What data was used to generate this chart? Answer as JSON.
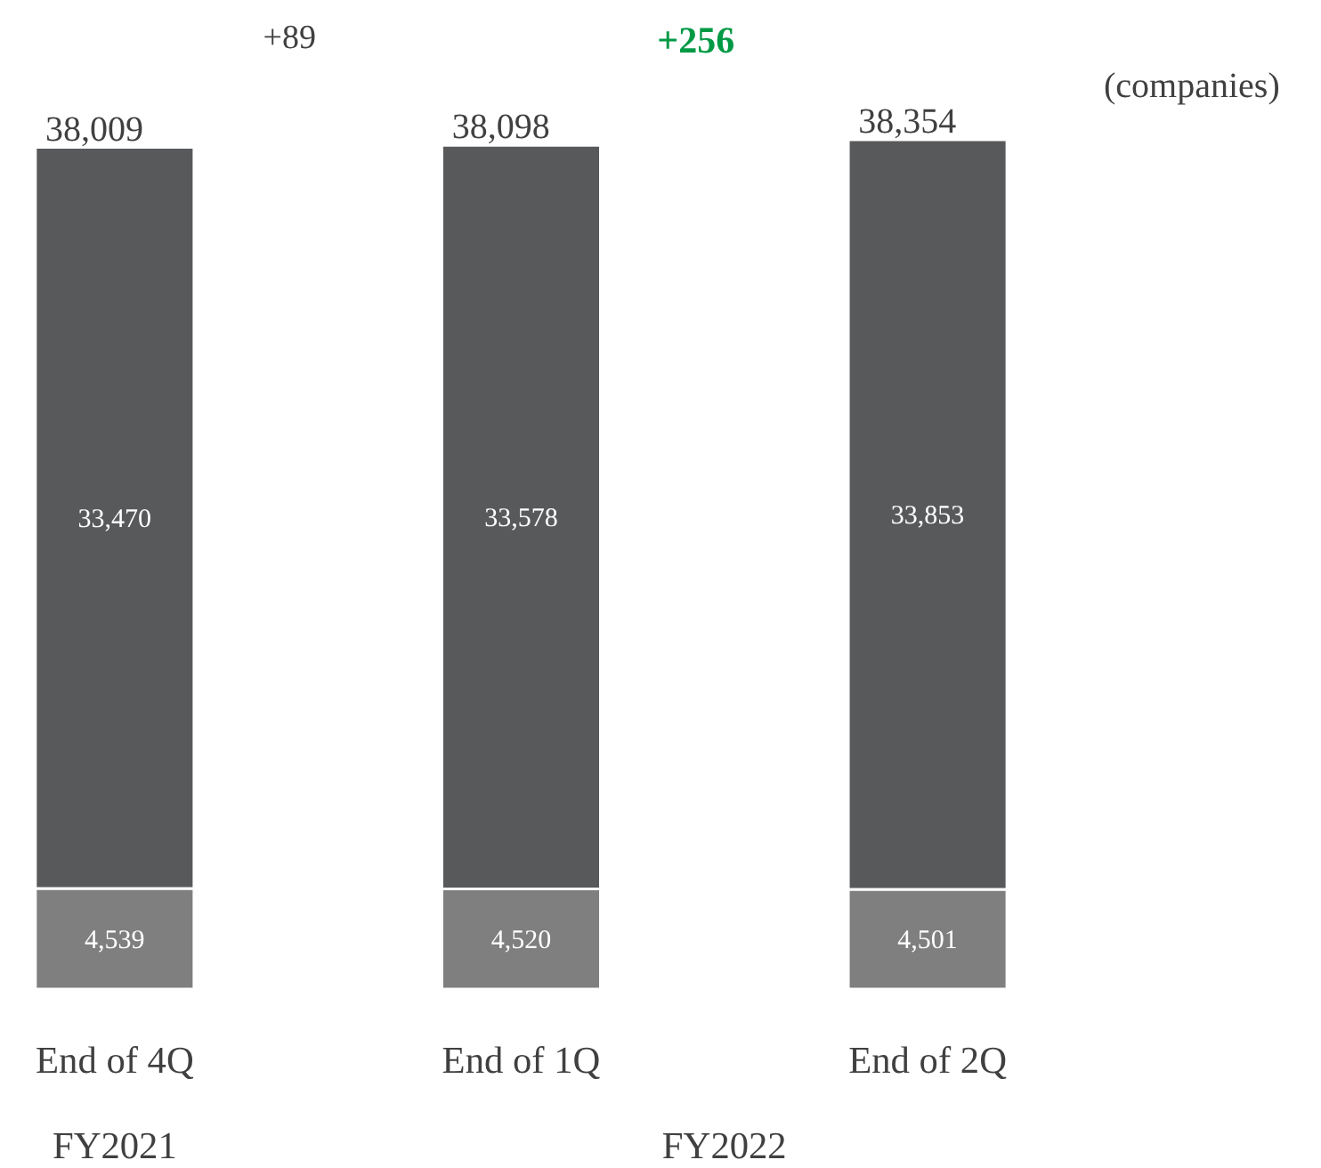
{
  "chart_data": {
    "type": "bar",
    "stacked": true,
    "grid": false,
    "categories": [
      "End of 4Q",
      "End of 1Q",
      "End of 2Q"
    ],
    "series": [
      {
        "color": "#7f7f7f",
        "values": [
          4539,
          4520,
          4501
        ],
        "value_labels": [
          "4,539",
          "4,520",
          "4,501"
        ]
      },
      {
        "color": "#58595b",
        "values": [
          33470,
          33578,
          33853
        ],
        "value_labels": [
          "33,470",
          "33,578",
          "33,853"
        ]
      }
    ],
    "totals": [
      "38,009",
      "38,098",
      "38,354"
    ],
    "ylabel": "(companies)",
    "annotations": [
      "+89",
      "+256",
      "FY2021",
      "FY2022"
    ]
  }
}
